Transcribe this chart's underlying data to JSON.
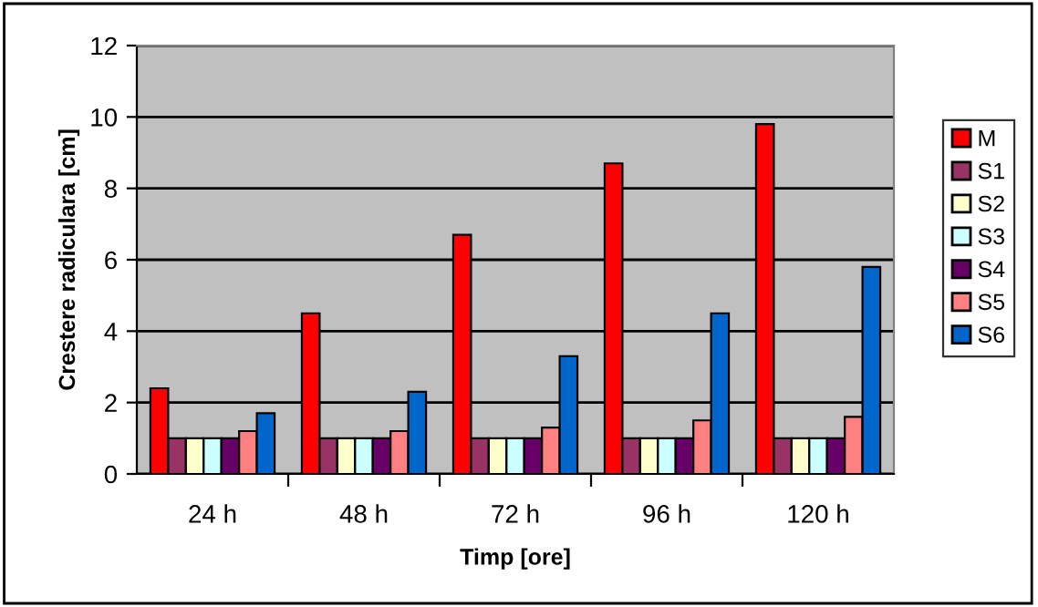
{
  "chart_data": {
    "type": "bar",
    "xlabel": "Timp [ore]",
    "ylabel": "Crestere radiculara [cm]",
    "categories": [
      "24 h",
      "48 h",
      "72 h",
      "96 h",
      "120 h"
    ],
    "series": [
      {
        "name": "M",
        "color": "#ff0000",
        "values": [
          2.4,
          4.5,
          6.7,
          8.7,
          9.8
        ]
      },
      {
        "name": "S1",
        "color": "#993366",
        "values": [
          1.0,
          1.0,
          1.0,
          1.0,
          1.0
        ]
      },
      {
        "name": "S2",
        "color": "#ffffcc",
        "values": [
          1.0,
          1.0,
          1.0,
          1.0,
          1.0
        ]
      },
      {
        "name": "S3",
        "color": "#ccffff",
        "values": [
          1.0,
          1.0,
          1.0,
          1.0,
          1.0
        ]
      },
      {
        "name": "S4",
        "color": "#660066",
        "values": [
          1.0,
          1.0,
          1.0,
          1.0,
          1.0
        ]
      },
      {
        "name": "S5",
        "color": "#ff8080",
        "values": [
          1.2,
          1.2,
          1.3,
          1.5,
          1.6
        ]
      },
      {
        "name": "S6",
        "color": "#0066cc",
        "values": [
          1.7,
          2.3,
          3.3,
          4.5,
          5.8
        ]
      }
    ],
    "ylim": [
      0,
      12
    ],
    "yticks": [
      0,
      2,
      4,
      6,
      8,
      10,
      12
    ],
    "grid": "y",
    "legend": "right"
  }
}
